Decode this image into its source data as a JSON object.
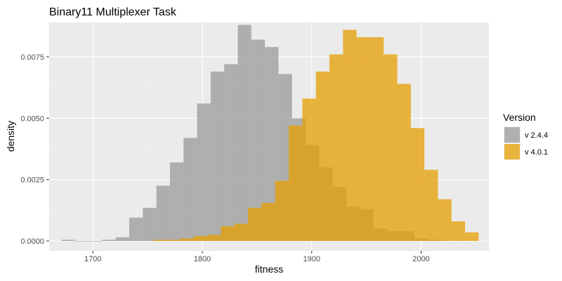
{
  "chart_data": {
    "type": "bar",
    "title": "Binary11 Multiplexer Task",
    "xlabel": "fitness",
    "ylabel": "density",
    "xlim": [
      1660,
      2062
    ],
    "ylim": [
      -0.0004,
      0.0089
    ],
    "x_ticks": [
      {
        "value": 1700,
        "label": "1700"
      },
      {
        "value": 1800,
        "label": "1800"
      },
      {
        "value": 1900,
        "label": "1900"
      },
      {
        "value": 2000,
        "label": "2000"
      }
    ],
    "y_ticks": [
      {
        "value": 0,
        "label": "0.0000"
      },
      {
        "value": 0.0025,
        "label": "0.0025"
      },
      {
        "value": 0.005,
        "label": "0.0050"
      },
      {
        "value": 0.0075,
        "label": "0.0075"
      }
    ],
    "grid": true,
    "legend": {
      "title": "Version",
      "position": "right"
    },
    "bin_width": 12.4,
    "series": [
      {
        "name": "v 2.4.4",
        "color": "#999999",
        "bins": [
          {
            "x": 1677.4,
            "y": 5e-05
          },
          {
            "x": 1689.8,
            "y": 0.0
          },
          {
            "x": 1702.2,
            "y": 0.0
          },
          {
            "x": 1714.6,
            "y": 5e-05
          },
          {
            "x": 1727.0,
            "y": 0.00015
          },
          {
            "x": 1739.4,
            "y": 0.00095
          },
          {
            "x": 1751.8,
            "y": 0.00135
          },
          {
            "x": 1764.2,
            "y": 0.00225
          },
          {
            "x": 1776.6,
            "y": 0.0032
          },
          {
            "x": 1789.0,
            "y": 0.0042
          },
          {
            "x": 1801.4,
            "y": 0.0056
          },
          {
            "x": 1813.8,
            "y": 0.0069
          },
          {
            "x": 1826.2,
            "y": 0.0072
          },
          {
            "x": 1838.6,
            "y": 0.0088
          },
          {
            "x": 1851.0,
            "y": 0.0082
          },
          {
            "x": 1863.4,
            "y": 0.0079
          },
          {
            "x": 1875.8,
            "y": 0.0068
          },
          {
            "x": 1888.2,
            "y": 0.005
          },
          {
            "x": 1900.6,
            "y": 0.0039
          },
          {
            "x": 1913.0,
            "y": 0.003
          },
          {
            "x": 1925.4,
            "y": 0.0022
          },
          {
            "x": 1937.8,
            "y": 0.0014
          },
          {
            "x": 1950.2,
            "y": 0.0013
          },
          {
            "x": 1962.6,
            "y": 0.0005
          },
          {
            "x": 1975.0,
            "y": 0.0004
          },
          {
            "x": 1987.4,
            "y": 0.0004
          },
          {
            "x": 1999.8,
            "y": 0.0001
          },
          {
            "x": 2012.2,
            "y": 5e-05
          }
        ]
      },
      {
        "name": "v 4.0.1",
        "color": "#E69F00",
        "bins": [
          {
            "x": 1761.2,
            "y": 5e-05
          },
          {
            "x": 1773.6,
            "y": 5e-05
          },
          {
            "x": 1786.0,
            "y": 0.0001
          },
          {
            "x": 1798.4,
            "y": 0.0002
          },
          {
            "x": 1810.8,
            "y": 0.00025
          },
          {
            "x": 1823.2,
            "y": 0.0006
          },
          {
            "x": 1835.6,
            "y": 0.0007
          },
          {
            "x": 1848.0,
            "y": 0.00135
          },
          {
            "x": 1860.4,
            "y": 0.00155
          },
          {
            "x": 1872.8,
            "y": 0.00245
          },
          {
            "x": 1885.2,
            "y": 0.0047
          },
          {
            "x": 1897.6,
            "y": 0.0058
          },
          {
            "x": 1910.0,
            "y": 0.0069
          },
          {
            "x": 1922.4,
            "y": 0.0076
          },
          {
            "x": 1934.8,
            "y": 0.0086
          },
          {
            "x": 1947.2,
            "y": 0.0083
          },
          {
            "x": 1959.6,
            "y": 0.0083
          },
          {
            "x": 1972.0,
            "y": 0.0076
          },
          {
            "x": 1984.4,
            "y": 0.0064
          },
          {
            "x": 1996.8,
            "y": 0.0046
          },
          {
            "x": 2009.2,
            "y": 0.0029
          },
          {
            "x": 2021.6,
            "y": 0.0017
          },
          {
            "x": 2034.0,
            "y": 0.0008
          },
          {
            "x": 2046.4,
            "y": 0.00035
          }
        ]
      }
    ]
  }
}
